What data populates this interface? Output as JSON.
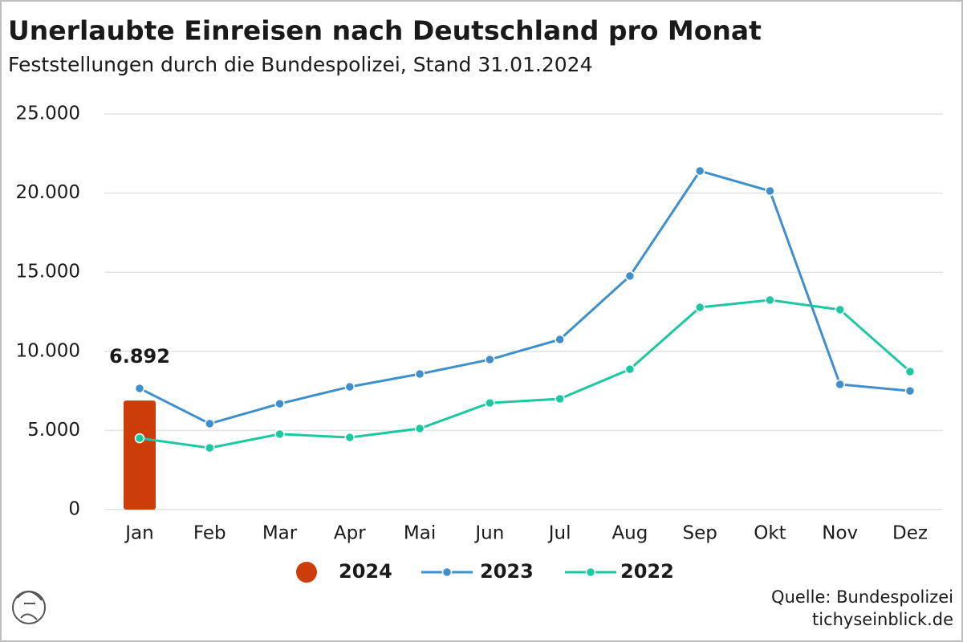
{
  "chart_data": {
    "type": "line",
    "title": "Unerlaubte Einreisen nach Deutschland pro Monat",
    "subtitle": "Feststellungen durch die Bundespolizei, Stand 31.01.2024",
    "categories": [
      "Jan",
      "Feb",
      "Mar",
      "Apr",
      "Mai",
      "Jun",
      "Jul",
      "Aug",
      "Sep",
      "Okt",
      "Nov",
      "Dez"
    ],
    "series": [
      {
        "name": "2024",
        "type": "bar",
        "color": "#cc3d0a",
        "values": [
          6892,
          null,
          null,
          null,
          null,
          null,
          null,
          null,
          null,
          null,
          null,
          null
        ],
        "value_labels": [
          "6.892",
          null,
          null,
          null,
          null,
          null,
          null,
          null,
          null,
          null,
          null,
          null
        ]
      },
      {
        "name": "2023",
        "type": "line",
        "color": "#3e8fcc",
        "values": [
          7660,
          5430,
          6690,
          7760,
          8570,
          9480,
          10750,
          14760,
          21400,
          20130,
          7910,
          7500
        ]
      },
      {
        "name": "2022",
        "type": "line",
        "color": "#1bc9a0",
        "values": [
          4510,
          3900,
          4770,
          4560,
          5120,
          6740,
          7000,
          8870,
          12780,
          13240,
          12630,
          8720
        ]
      }
    ],
    "ylim": [
      0,
      25000
    ],
    "yticks": [
      0,
      {
        "value": 5000,
        "label": "5.000"
      },
      {
        "value": 10000,
        "label": "10.000"
      },
      {
        "value": 15000,
        "label": "15.000"
      },
      {
        "value": 20000,
        "label": "20.000"
      },
      {
        "value": 25000,
        "label": "25.000"
      }
    ],
    "grid": true,
    "legend": "bottom",
    "source": [
      "Quelle: Bundespolizei",
      "tichyseinblick.de"
    ]
  }
}
